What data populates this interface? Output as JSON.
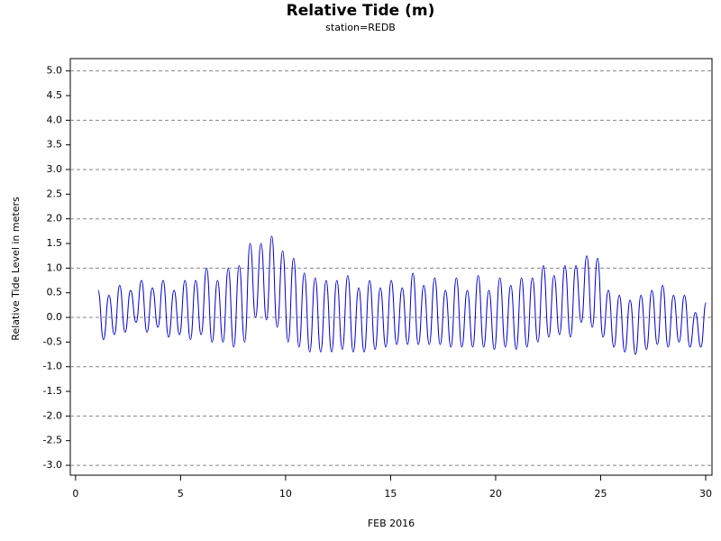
{
  "chart_data": {
    "type": "line",
    "title": "Relative Tide (m)",
    "subtitle": "station=REDB",
    "x_label": "FEB 2016",
    "y_label": "Relative Tide Level in meters",
    "color": "#0000cc",
    "grid": true,
    "xlim": [
      -0.25,
      30.3
    ],
    "ylim": [
      -3.2,
      5.25
    ],
    "xticks": [
      0,
      5,
      10,
      15,
      20,
      25,
      30
    ],
    "yticks": [
      {
        "value": 5,
        "label": "5.0"
      },
      {
        "value": 4.5,
        "label": "4.5"
      },
      {
        "value": 4,
        "label": "4.0"
      },
      {
        "value": 3.5,
        "label": "3.5"
      },
      {
        "value": 3,
        "label": "3.0"
      },
      {
        "value": 2.5,
        "label": "2.5"
      },
      {
        "value": 2,
        "label": "2.0"
      },
      {
        "value": 1.5,
        "label": "1.5"
      },
      {
        "value": 1,
        "label": "1.0"
      },
      {
        "value": 0.5,
        "label": "0.5"
      },
      {
        "value": 0,
        "label": "0.0"
      },
      {
        "value": -0.5,
        "label": "-0.5"
      },
      {
        "value": -1,
        "label": "-1.0"
      },
      {
        "value": -1.5,
        "label": "-1.5"
      },
      {
        "value": -2,
        "label": "-2.0"
      },
      {
        "value": -2.5,
        "label": "-2.5"
      },
      {
        "value": -3,
        "label": "-3.0"
      }
    ],
    "x": [
      1.07,
      1.33,
      1.59,
      1.85,
      2.1,
      2.36,
      2.62,
      2.88,
      3.14,
      3.4,
      3.66,
      3.92,
      4.17,
      4.43,
      4.69,
      4.95,
      5.21,
      5.47,
      5.72,
      5.98,
      6.24,
      6.5,
      6.76,
      7.02,
      7.27,
      7.53,
      7.79,
      8.05,
      8.31,
      8.57,
      8.83,
      9.09,
      9.34,
      9.6,
      9.86,
      10.12,
      10.38,
      10.64,
      10.89,
      11.15,
      11.41,
      11.67,
      11.93,
      12.19,
      12.44,
      12.7,
      12.96,
      13.22,
      13.48,
      13.74,
      14.0,
      14.26,
      14.51,
      14.77,
      15.03,
      15.29,
      15.55,
      15.81,
      16.06,
      16.32,
      16.58,
      16.84,
      17.1,
      17.36,
      17.61,
      17.87,
      18.13,
      18.39,
      18.65,
      18.91,
      19.17,
      19.43,
      19.68,
      19.94,
      20.2,
      20.46,
      20.72,
      20.98,
      21.23,
      21.49,
      21.75,
      22.01,
      22.27,
      22.53,
      22.78,
      23.04,
      23.3,
      23.56,
      23.82,
      24.08,
      24.34,
      24.6,
      24.85,
      25.11,
      25.37,
      25.63,
      25.89,
      26.15,
      26.4,
      26.66,
      26.92,
      27.18,
      27.44,
      27.7,
      27.95,
      28.21,
      28.47,
      28.73,
      28.99,
      29.25,
      29.51,
      29.77,
      30.02
    ],
    "values": [
      0.55,
      -0.45,
      0.45,
      -0.35,
      0.65,
      -0.3,
      0.55,
      -0.1,
      0.75,
      -0.3,
      0.6,
      -0.2,
      0.75,
      -0.4,
      0.55,
      -0.35,
      0.75,
      -0.45,
      0.75,
      -0.35,
      1.0,
      -0.5,
      0.75,
      -0.5,
      1.0,
      -0.6,
      1.05,
      -0.5,
      1.5,
      0.0,
      1.5,
      -0.05,
      1.65,
      -0.2,
      1.35,
      -0.5,
      1.2,
      -0.6,
      0.9,
      -0.7,
      0.8,
      -0.7,
      0.75,
      -0.7,
      0.75,
      -0.65,
      0.85,
      -0.7,
      0.6,
      -0.7,
      0.75,
      -0.65,
      0.6,
      -0.6,
      0.75,
      -0.55,
      0.6,
      -0.55,
      0.9,
      -0.55,
      0.65,
      -0.55,
      0.8,
      -0.55,
      0.55,
      -0.6,
      0.8,
      -0.6,
      0.55,
      -0.6,
      0.85,
      -0.6,
      0.55,
      -0.65,
      0.8,
      -0.6,
      0.65,
      -0.65,
      0.8,
      -0.6,
      0.8,
      -0.5,
      1.05,
      -0.4,
      0.85,
      -0.35,
      1.05,
      -0.4,
      1.05,
      -0.1,
      1.25,
      -0.2,
      1.2,
      -0.4,
      0.55,
      -0.6,
      0.45,
      -0.7,
      0.35,
      -0.75,
      0.45,
      -0.65,
      0.55,
      -0.55,
      0.65,
      -0.6,
      0.45,
      -0.5,
      0.45,
      -0.6,
      0.1,
      -0.6,
      0.3
    ]
  }
}
